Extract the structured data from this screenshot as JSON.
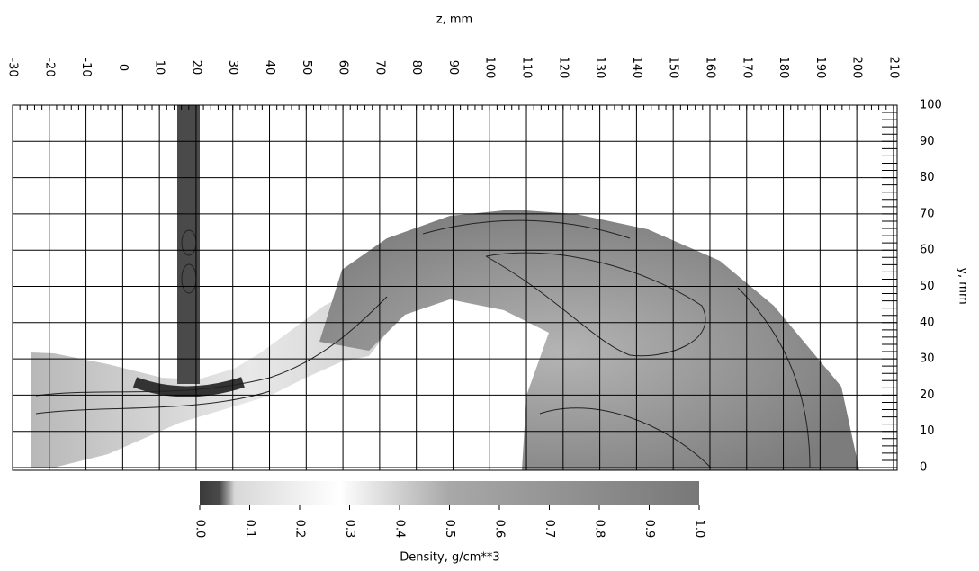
{
  "chart_data": {
    "type": "heatmap",
    "x_label": "z, mm",
    "y_label": "y, mm",
    "colorbar_label": "Density, g/cm**3",
    "xlim": [
      -30,
      211
    ],
    "xticks": [
      -30,
      -20,
      -10,
      0,
      10,
      20,
      30,
      40,
      50,
      60,
      70,
      80,
      90,
      100,
      110,
      120,
      130,
      140,
      150,
      160,
      170,
      180,
      190,
      200,
      210
    ],
    "ylim": [
      0,
      100
    ],
    "yticks": [
      0,
      10,
      20,
      30,
      40,
      50,
      60,
      70,
      80,
      90,
      100
    ],
    "clim": [
      0,
      1
    ],
    "cticks": [
      {
        "value": 0,
        "label": "0.0"
      },
      {
        "value": 0.1,
        "label": "0.1"
      },
      {
        "value": 0.2,
        "label": "0.2"
      },
      {
        "value": 0.3,
        "label": "0.3"
      },
      {
        "value": 0.4,
        "label": "0.4"
      },
      {
        "value": 0.5,
        "label": "0.5"
      },
      {
        "value": 0.6,
        "label": "0.6"
      },
      {
        "value": 0.7,
        "label": "0.7"
      },
      {
        "value": 0.8,
        "label": "0.8"
      },
      {
        "value": 0.9,
        "label": "0.9"
      },
      {
        "value": 1,
        "label": "1.0"
      }
    ],
    "grid": true
  }
}
